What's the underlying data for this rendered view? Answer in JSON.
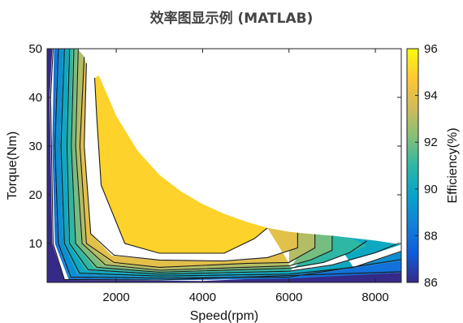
{
  "title": "效率图显示例 (MATLAB)",
  "chart_data": {
    "type": "heatmap",
    "subtype": "filled-contour efficiency map",
    "xlabel": "Speed(rpm)",
    "ylabel": "Torque(Nm)",
    "colorbar_label": "Efficiency(%)",
    "xlim": [
      400,
      8600
    ],
    "ylim": [
      2,
      50
    ],
    "x_ticks": [
      2000,
      4000,
      6000,
      8000
    ],
    "x_tick_labels": [
      "2000",
      "4000",
      "6000",
      "8000"
    ],
    "y_ticks": [
      10,
      20,
      30,
      40,
      50
    ],
    "y_tick_labels": [
      "10",
      "20",
      "30",
      "40",
      "50"
    ],
    "color_range": [
      86,
      96
    ],
    "colorbar_ticks": [
      86,
      88,
      90,
      92,
      94,
      96
    ],
    "colorbar_tick_labels": [
      "86",
      "88",
      "90",
      "92",
      "94",
      "96"
    ],
    "colormap": "parula",
    "colormap_stops": [
      "#352a87",
      "#0f5cdd",
      "#1481d6",
      "#06a4ca",
      "#2eb7a4",
      "#87bf77",
      "#d1bb59",
      "#fec832",
      "#f9fb0e"
    ],
    "grid": false,
    "max_torque_curve": [
      [
        400,
        50
      ],
      [
        1200,
        50
      ],
      [
        1500,
        48.3
      ],
      [
        2000,
        36.2
      ],
      [
        2500,
        29
      ],
      [
        3000,
        24.1
      ],
      [
        3500,
        20.7
      ],
      [
        4000,
        18.1
      ],
      [
        4500,
        16.1
      ],
      [
        5000,
        14.5
      ],
      [
        5500,
        13.2
      ],
      [
        6000,
        12.4
      ],
      [
        7000,
        11.6
      ],
      [
        8000,
        10.6
      ],
      [
        8600,
        9.8
      ]
    ],
    "contours": [
      {
        "level": 86,
        "points": [
          [
            400,
            50
          ],
          [
            400,
            2
          ],
          [
            8600,
            2
          ],
          [
            8600,
            4
          ],
          [
            4000,
            2.3
          ],
          [
            800,
            2.5
          ],
          [
            520,
            10
          ],
          [
            460,
            40
          ],
          [
            520,
            50
          ]
        ]
      },
      {
        "level": 88,
        "points": [
          [
            640,
            50
          ],
          [
            560,
            30
          ],
          [
            640,
            10
          ],
          [
            900,
            3
          ],
          [
            3000,
            2.6
          ],
          [
            6000,
            3
          ],
          [
            8600,
            6.5
          ],
          [
            8600,
            4
          ],
          [
            6000,
            2.8
          ],
          [
            3000,
            2.4
          ],
          [
            900,
            2.6
          ],
          [
            580,
            10
          ],
          [
            520,
            30
          ],
          [
            560,
            50
          ]
        ]
      },
      {
        "level": 89,
        "points": [
          [
            780,
            50
          ],
          [
            700,
            30
          ],
          [
            780,
            10
          ],
          [
            1100,
            3.8
          ],
          [
            3000,
            3
          ],
          [
            6000,
            3.6
          ],
          [
            7500,
            5
          ],
          [
            8600,
            8.3
          ],
          [
            8600,
            6.5
          ],
          [
            6000,
            3
          ],
          [
            3000,
            2.6
          ],
          [
            900,
            3
          ],
          [
            640,
            10
          ],
          [
            560,
            30
          ],
          [
            640,
            50
          ]
        ]
      },
      {
        "level": 90,
        "points": [
          [
            900,
            50
          ],
          [
            850,
            30
          ],
          [
            900,
            10
          ],
          [
            1300,
            4.5
          ],
          [
            3000,
            3.6
          ],
          [
            6000,
            4.2
          ],
          [
            7000,
            5.5
          ],
          [
            8000,
            8
          ],
          [
            8600,
            9.8
          ],
          [
            8000,
            10.6
          ],
          [
            7000,
            11.6
          ],
          [
            7500,
            5
          ],
          [
            6000,
            3.6
          ],
          [
            3000,
            3
          ],
          [
            1100,
            3.8
          ],
          [
            780,
            10
          ],
          [
            700,
            30
          ],
          [
            780,
            50
          ]
        ]
      },
      {
        "level": 91,
        "points": [
          [
            1000,
            50
          ],
          [
            950,
            30
          ],
          [
            1050,
            10
          ],
          [
            1500,
            5
          ],
          [
            3000,
            4
          ],
          [
            6000,
            4.8
          ],
          [
            6800,
            6
          ],
          [
            7400,
            8
          ],
          [
            7800,
            9.5
          ],
          [
            7500,
            10.9
          ],
          [
            7000,
            11.6
          ],
          [
            6000,
            4.2
          ],
          [
            3000,
            3.6
          ],
          [
            1300,
            4.5
          ],
          [
            900,
            10
          ],
          [
            850,
            30
          ],
          [
            900,
            50
          ]
        ]
      },
      {
        "level": 92,
        "points": [
          [
            1100,
            50
          ],
          [
            1050,
            30
          ],
          [
            1200,
            10
          ],
          [
            1700,
            5.5
          ],
          [
            3000,
            4.4
          ],
          [
            6000,
            5.3
          ],
          [
            6500,
            6.5
          ],
          [
            7000,
            8.5
          ],
          [
            7000,
            11.6
          ],
          [
            6600,
            11.9
          ],
          [
            6000,
            4.8
          ],
          [
            3000,
            4
          ],
          [
            1500,
            5
          ],
          [
            1050,
            10
          ],
          [
            950,
            30
          ],
          [
            1000,
            50
          ]
        ]
      },
      {
        "level": 93,
        "points": [
          [
            1250,
            48.5
          ],
          [
            1150,
            30
          ],
          [
            1300,
            10
          ],
          [
            1900,
            6
          ],
          [
            3000,
            5
          ],
          [
            5000,
            5.8
          ],
          [
            6000,
            6
          ],
          [
            6600,
            9
          ],
          [
            6600,
            11.9
          ],
          [
            6000,
            12.4
          ],
          [
            6000,
            5.3
          ],
          [
            3000,
            4.4
          ],
          [
            1700,
            5.5
          ],
          [
            1200,
            10
          ],
          [
            1050,
            30
          ],
          [
            1100,
            50
          ]
        ]
      },
      {
        "level": 94,
        "points": [
          [
            1300,
            47
          ],
          [
            1250,
            30
          ],
          [
            1400,
            12
          ],
          [
            1900,
            7.5
          ],
          [
            3000,
            6.5
          ],
          [
            4500,
            6.3
          ],
          [
            5500,
            7
          ],
          [
            6200,
            9
          ],
          [
            6200,
            12.2
          ],
          [
            5500,
            13.2
          ],
          [
            6000,
            6
          ],
          [
            5000,
            5.8
          ],
          [
            3000,
            5
          ],
          [
            1900,
            6
          ],
          [
            1300,
            10
          ],
          [
            1150,
            30
          ],
          [
            1250,
            48.5
          ]
        ]
      },
      {
        "level": 95,
        "points": [
          [
            1500,
            44
          ],
          [
            1550,
            36
          ],
          [
            1650,
            22
          ],
          [
            2200,
            10
          ],
          [
            3000,
            8
          ],
          [
            4500,
            8
          ],
          [
            5200,
            11
          ],
          [
            5500,
            13.2
          ],
          [
            5000,
            14.5
          ],
          [
            4500,
            16.1
          ],
          [
            4000,
            18.1
          ],
          [
            3500,
            20.7
          ],
          [
            3000,
            24.1
          ],
          [
            2500,
            29
          ],
          [
            2000,
            36.2
          ],
          [
            1600,
            44.5
          ]
        ]
      }
    ],
    "contour_lines": [
      [
        [
          540,
          50
        ],
        [
          480,
          40
        ],
        [
          540,
          10
        ],
        [
          800,
          2.6
        ],
        [
          3000,
          2.5
        ],
        [
          8600,
          4.2
        ]
      ],
      [
        [
          660,
          50
        ],
        [
          580,
          30
        ],
        [
          660,
          10
        ],
        [
          950,
          3.1
        ],
        [
          3000,
          2.9
        ],
        [
          6000,
          3.1
        ],
        [
          8600,
          6.7
        ]
      ],
      [
        [
          800,
          50
        ],
        [
          720,
          30
        ],
        [
          800,
          10
        ],
        [
          1150,
          3.9
        ],
        [
          3000,
          3.3
        ],
        [
          6000,
          3.7
        ],
        [
          7500,
          5.1
        ],
        [
          8600,
          8.4
        ]
      ],
      [
        [
          920,
          50
        ],
        [
          860,
          30
        ],
        [
          920,
          10
        ],
        [
          1350,
          4.6
        ],
        [
          3000,
          3.7
        ],
        [
          6000,
          4.3
        ],
        [
          7000,
          5.6
        ],
        [
          8000,
          8.1
        ],
        [
          8500,
          9.9
        ]
      ],
      [
        [
          1020,
          50
        ],
        [
          960,
          30
        ],
        [
          1060,
          10
        ],
        [
          1550,
          5.1
        ],
        [
          3000,
          4.1
        ],
        [
          6000,
          4.9
        ],
        [
          6800,
          6.1
        ],
        [
          7400,
          8.1
        ],
        [
          7800,
          10.5
        ]
      ],
      [
        [
          1120,
          50
        ],
        [
          1060,
          30
        ],
        [
          1210,
          10
        ],
        [
          1750,
          5.6
        ],
        [
          3000,
          4.5
        ],
        [
          6000,
          5.4
        ],
        [
          6500,
          6.6
        ],
        [
          7000,
          8.6
        ],
        [
          7000,
          11.6
        ]
      ],
      [
        [
          1260,
          48.3
        ],
        [
          1160,
          30
        ],
        [
          1310,
          10
        ],
        [
          1950,
          6.1
        ],
        [
          3000,
          5.1
        ],
        [
          5000,
          5.9
        ],
        [
          6000,
          6.1
        ],
        [
          6600,
          9.1
        ],
        [
          6600,
          11.9
        ]
      ],
      [
        [
          1310,
          47
        ],
        [
          1260,
          30
        ],
        [
          1410,
          12
        ],
        [
          1950,
          7.6
        ],
        [
          3000,
          6.6
        ],
        [
          4500,
          6.4
        ],
        [
          5500,
          7.1
        ],
        [
          6200,
          9.1
        ],
        [
          6200,
          12.2
        ]
      ],
      [
        [
          1500,
          44
        ],
        [
          1550,
          36
        ],
        [
          1650,
          22
        ],
        [
          2200,
          10
        ],
        [
          3000,
          8
        ],
        [
          4500,
          8
        ],
        [
          5200,
          11
        ],
        [
          5500,
          13.2
        ]
      ]
    ]
  }
}
